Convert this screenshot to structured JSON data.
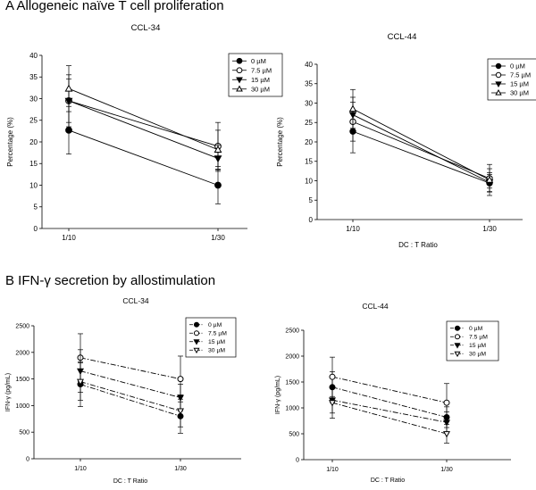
{
  "sections": {
    "a_title": "A  Allogeneic naïve T cell proliferation",
    "b_title": "B  IFN-γ secretion by allostimulation"
  },
  "chart_data": [
    {
      "id": "a1",
      "type": "line",
      "title": "CCL-34",
      "xlabel": "",
      "ylabel": "Percentage (%)",
      "categories": [
        "1/10",
        "1/30"
      ],
      "ylim": [
        0,
        40
      ],
      "yticks": [
        0,
        5,
        10,
        15,
        20,
        25,
        30,
        35,
        40
      ],
      "ytick_labels": [
        "0",
        "5",
        "10",
        "15",
        "20",
        "25",
        "30",
        "35",
        "40"
      ],
      "legend_position": "top-right",
      "series": [
        {
          "name": "0 µM",
          "marker": "circle-filled",
          "dash": "solid",
          "values": [
            22.7,
            10.0
          ],
          "errors": [
            5.5,
            4.3
          ]
        },
        {
          "name": "7.5 µM",
          "marker": "circle-open",
          "dash": "solid",
          "values": [
            29.5,
            19.0
          ],
          "errors": [
            6.0,
            5.5
          ]
        },
        {
          "name": "15 µM",
          "marker": "triangle-down-filled",
          "dash": "solid",
          "values": [
            29.5,
            16.2
          ],
          "errors": [
            5.0,
            3.0
          ]
        },
        {
          "name": "30 µM",
          "marker": "triangle-up-open",
          "dash": "solid",
          "values": [
            32.3,
            18.2
          ],
          "errors": [
            5.3,
            4.5
          ]
        }
      ]
    },
    {
      "id": "a2",
      "type": "line",
      "title": "CCL-44",
      "xlabel": "DC : T Ratio",
      "ylabel": "Percentage (%)",
      "categories": [
        "1/10",
        "1/30"
      ],
      "ylim": [
        0,
        40
      ],
      "yticks": [
        0,
        5,
        10,
        15,
        20,
        25,
        30,
        35,
        40
      ],
      "ytick_labels": [
        "0",
        "5",
        "10",
        "15",
        "20",
        "25",
        "30",
        "35",
        "40"
      ],
      "legend_position": "top-right",
      "series": [
        {
          "name": "0 µM",
          "marker": "circle-filled",
          "dash": "solid",
          "values": [
            22.7,
            9.4
          ],
          "errors": [
            5.5,
            2.2
          ]
        },
        {
          "name": "7.5 µM",
          "marker": "circle-open",
          "dash": "solid",
          "values": [
            25.2,
            10.6
          ],
          "errors": [
            5.0,
            2.5
          ]
        },
        {
          "name": "15 µM",
          "marker": "triangle-down-filled",
          "dash": "solid",
          "values": [
            27.0,
            9.6
          ],
          "errors": [
            4.5,
            2.5
          ]
        },
        {
          "name": "30 µM",
          "marker": "triangle-up-open",
          "dash": "solid",
          "values": [
            28.5,
            10.2
          ],
          "errors": [
            5.0,
            4.0
          ]
        }
      ]
    },
    {
      "id": "b1",
      "type": "line",
      "title": "CCL-34",
      "xlabel": "DC : T Ratio",
      "ylabel": "IFN-γ (pg/mL)",
      "categories": [
        "1/10",
        "1/30"
      ],
      "ylim": [
        0,
        2500
      ],
      "yticks": [
        0,
        500,
        1000,
        1500,
        2000,
        2500
      ],
      "ytick_labels": [
        "0",
        "500",
        "1000",
        "1500",
        "2000",
        "2500"
      ],
      "legend_position": "top-right",
      "series": [
        {
          "name": "0 µM",
          "marker": "circle-filled",
          "dash": "dashdot",
          "values": [
            1400,
            800
          ],
          "errors": [
            420,
            320
          ]
        },
        {
          "name": "7.5 µM",
          "marker": "circle-open",
          "dash": "dashdot",
          "values": [
            1900,
            1500
          ],
          "errors": [
            450,
            430
          ]
        },
        {
          "name": "15 µM",
          "marker": "triangle-down-filled",
          "dash": "dashdot",
          "values": [
            1650,
            1150
          ],
          "errors": [
            400,
            250
          ]
        },
        {
          "name": "30 µM",
          "marker": "triangle-down-open",
          "dash": "dashdot",
          "values": [
            1450,
            900
          ],
          "errors": [
            350,
            300
          ]
        }
      ]
    },
    {
      "id": "b2",
      "type": "line",
      "title": "CCL-44",
      "xlabel": "DC : T Ratio",
      "ylabel": "IFN-γ (pg/mL)",
      "categories": [
        "1/10",
        "1/30"
      ],
      "ylim": [
        0,
        2500
      ],
      "yticks": [
        0,
        500,
        1000,
        1500,
        2000,
        2500
      ],
      "ytick_labels": [
        "0",
        "500",
        "1000",
        "1500",
        "2000",
        "2500"
      ],
      "legend_position": "top-right",
      "series": [
        {
          "name": "0 µM",
          "marker": "circle-filled",
          "dash": "dashdot",
          "values": [
            1400,
            820
          ],
          "errors": [
            300,
            200
          ]
        },
        {
          "name": "7.5 µM",
          "marker": "circle-open",
          "dash": "dashdot",
          "values": [
            1600,
            1100
          ],
          "errors": [
            380,
            370
          ]
        },
        {
          "name": "15 µM",
          "marker": "triangle-down-filled",
          "dash": "dashdot",
          "values": [
            1150,
            720
          ],
          "errors": [
            250,
            200
          ]
        },
        {
          "name": "30 µM",
          "marker": "triangle-down-open",
          "dash": "dashdot",
          "values": [
            1100,
            500
          ],
          "errors": [
            300,
            180
          ]
        }
      ]
    }
  ]
}
